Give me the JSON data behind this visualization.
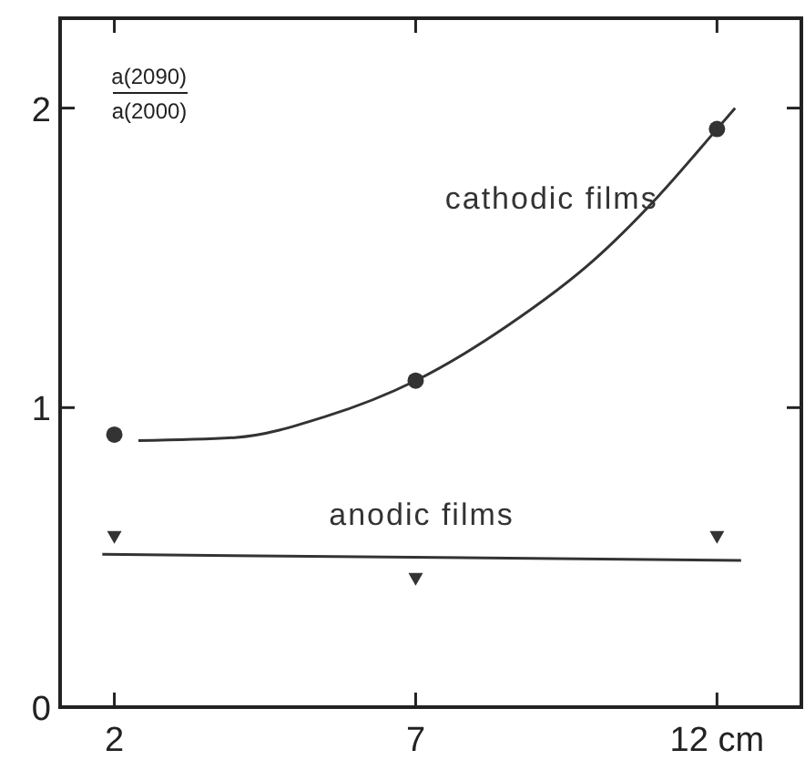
{
  "chart_data": {
    "type": "scatter",
    "ylabel": "a(2090)/a(2000)",
    "xlim": [
      1.1,
      13.4
    ],
    "ylim": [
      0,
      2.3
    ],
    "xticks": [
      2,
      7,
      {
        "value": 12,
        "label": "12 cm"
      }
    ],
    "yticks": [
      0,
      1,
      2
    ],
    "grid": false,
    "series": [
      {
        "color": "#333333",
        "marker": "circle",
        "x": [
          2,
          7,
          12
        ],
        "values": [
          0.91,
          1.09,
          1.93
        ]
      },
      {
        "type": "line",
        "name": "cathodic films",
        "color": "#333333",
        "marker": "none",
        "x": [
          2.4,
          4,
          5.5,
          7,
          8.5,
          10,
          11,
          12,
          12.3
        ],
        "values": [
          0.89,
          0.9,
          0.97,
          1.09,
          1.27,
          1.5,
          1.7,
          1.93,
          2.0
        ]
      },
      {
        "color": "#333333",
        "marker": "triangle",
        "x": [
          2,
          7,
          12
        ],
        "values": [
          0.57,
          0.43,
          0.57
        ]
      },
      {
        "type": "line",
        "name": "anodic films",
        "color": "#333333",
        "marker": "none",
        "x": [
          1.8,
          12.4
        ],
        "values": [
          0.51,
          0.49
        ]
      }
    ]
  }
}
